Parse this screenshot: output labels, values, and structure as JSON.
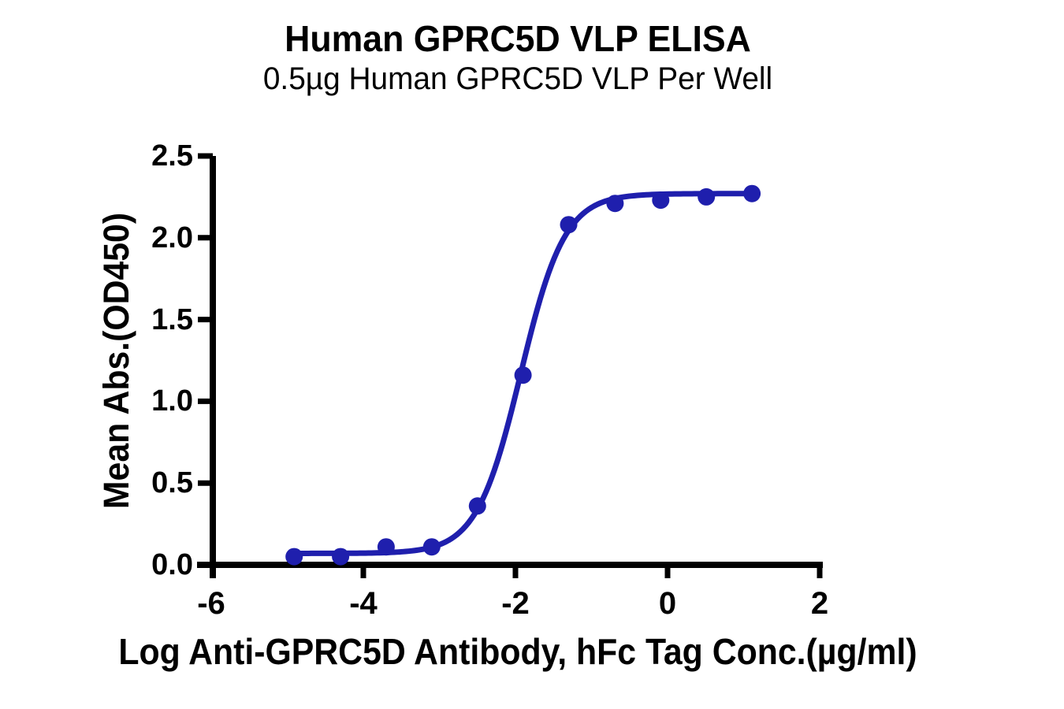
{
  "chart_data": {
    "type": "scatter",
    "title": "Human GPRC5D VLP ELISA",
    "subtitle": "0.5µg Human GPRC5D VLP Per Well",
    "xlabel": "Log Anti-GPRC5D Antibody, hFc Tag Conc.(µg/ml)",
    "ylabel": "Mean Abs.(OD450)",
    "xlim": [
      -6,
      2
    ],
    "ylim": [
      0,
      2.5
    ],
    "x_ticks": [
      -6,
      -4,
      -2,
      0,
      2
    ],
    "y_ticks": [
      0,
      0.5,
      1,
      1.5,
      2,
      2.5
    ],
    "x_tick_labels": [
      "-6",
      "-4",
      "-2",
      "0",
      "2"
    ],
    "y_tick_labels": [
      "0.0",
      "0.5",
      "1.0",
      "1.5",
      "2.0",
      "2.5"
    ],
    "grid": false,
    "legend": "none",
    "colors": {
      "series": "#1f1fad",
      "axis": "#000000",
      "background": "#ffffff"
    },
    "series": [
      {
        "name": "Anti-GPRC5D Antibody, hFc Tag",
        "color": "#1f1fad",
        "points": [
          [
            -4.91,
            0.05
          ],
          [
            -4.3,
            0.05
          ],
          [
            -3.7,
            0.11
          ],
          [
            -3.1,
            0.11
          ],
          [
            -2.5,
            0.36
          ],
          [
            -1.9,
            1.16
          ],
          [
            -1.3,
            2.08
          ],
          [
            -0.69,
            2.21
          ],
          [
            -0.09,
            2.23
          ],
          [
            0.51,
            2.25
          ],
          [
            1.11,
            2.27
          ]
        ],
        "curve_fit": {
          "model": "4PL",
          "bottom": 0.07,
          "top": 2.27,
          "log_ec50": -1.93,
          "hill": 1.5,
          "x_start": -4.91,
          "x_end": 1.11
        }
      }
    ]
  }
}
